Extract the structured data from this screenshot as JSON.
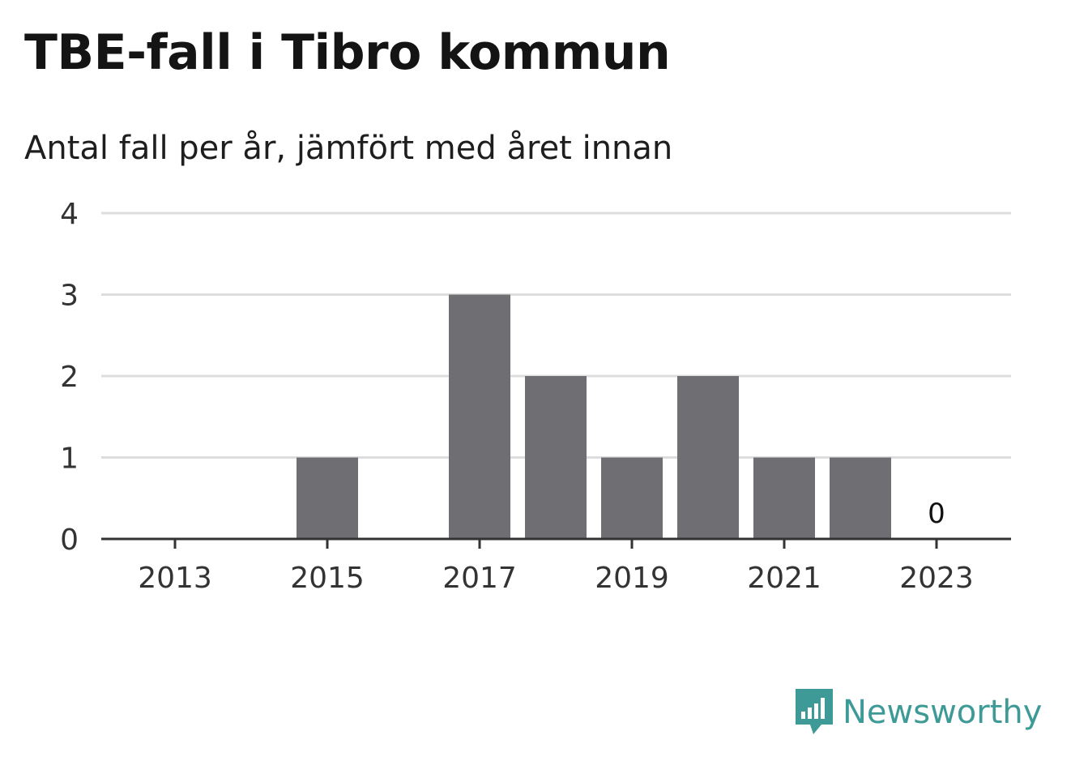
{
  "chart_data": {
    "type": "bar",
    "title": "TBE-fall i Tibro kommun",
    "subtitle": "Antal fall per år, jämfört med året innan",
    "xlabel": "",
    "ylabel": "",
    "ylim": [
      0,
      4
    ],
    "yticks": [
      "0",
      "1",
      "2",
      "3",
      "4"
    ],
    "grid": true,
    "categories": [
      "2013",
      "2014",
      "2015",
      "2016",
      "2017",
      "2018",
      "2019",
      "2020",
      "2021",
      "2022",
      "2023"
    ],
    "xtick_labels": [
      "2013",
      "2015",
      "2017",
      "2019",
      "2021",
      "2023"
    ],
    "values": [
      0,
      0,
      1,
      0,
      3,
      2,
      1,
      2,
      1,
      1,
      0
    ],
    "annotations": [
      {
        "category": "2023",
        "text": "0"
      }
    ],
    "bar_color": "#6f6e73"
  },
  "branding": {
    "logo_icon": "newsworthy-logo-icon",
    "logo_text": "Newsworthy",
    "logo_color": "#3d9a97"
  }
}
